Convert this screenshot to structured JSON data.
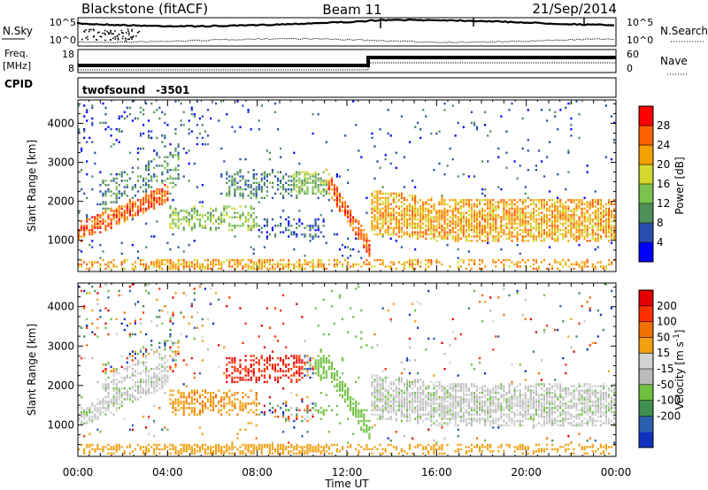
{
  "header": {
    "station": "Blackstone (fitACF)",
    "beam": "Beam 11",
    "date": "21/Sep/2014"
  },
  "noise_panel": {
    "left_label": "N.Sky",
    "right_label": "N.Search",
    "left_ticks": [
      "10^5",
      "10^0"
    ],
    "right_ticks": [
      "10^5",
      "10^0"
    ]
  },
  "freq_panel": {
    "left_label_line1": "Freq.",
    "left_label_line2": "[MHz]",
    "left_ticks": [
      "18",
      "8"
    ],
    "right_label": "Nave",
    "right_ticks": [
      "60",
      "0"
    ]
  },
  "cpid": {
    "label": "CPID",
    "program": "twofsound",
    "id": "-3501"
  },
  "colors": {
    "power_scale": [
      "#0000ff",
      "#2a4fb0",
      "#4f8f5a",
      "#7cc24e",
      "#d2d830",
      "#f5a000",
      "#ff6000",
      "#ff0000"
    ],
    "velocity_scale": [
      "#1030c0",
      "#2b60b0",
      "#3f8f4f",
      "#70c040",
      "#bbbbbb",
      "#d2d2d2",
      "#f0a010",
      "#f07000",
      "#ff3000",
      "#e00000"
    ]
  },
  "chart_data": [
    {
      "type": "heatmap",
      "name": "power",
      "ylabel": "Slant Range [km]",
      "xlabel": "Time UT",
      "y_ticks": [
        "1000",
        "2000",
        "3000",
        "4000"
      ],
      "ylim": [
        200,
        4600
      ],
      "xlim": [
        "00:00",
        "24:00"
      ],
      "colorbar_label": "Power [dB]",
      "colorbar_ticks": [
        "4",
        "8",
        "12",
        "16",
        "20",
        "24",
        "28"
      ],
      "colorbar_range": [
        0,
        30
      ]
    },
    {
      "type": "heatmap",
      "name": "velocity",
      "ylabel": "Slant Range [km]",
      "xlabel": "Time UT",
      "y_ticks": [
        "1000",
        "2000",
        "3000",
        "4000"
      ],
      "ylim": [
        200,
        4600
      ],
      "x_ticks": [
        "00:00",
        "04:00",
        "08:00",
        "12:00",
        "16:00",
        "20:00",
        "00:00"
      ],
      "colorbar_label": "Velocity [m s^-1]",
      "colorbar_ticks": [
        "200",
        "100",
        "50",
        "15",
        "-15",
        "-50",
        "-100",
        "-200"
      ]
    }
  ]
}
